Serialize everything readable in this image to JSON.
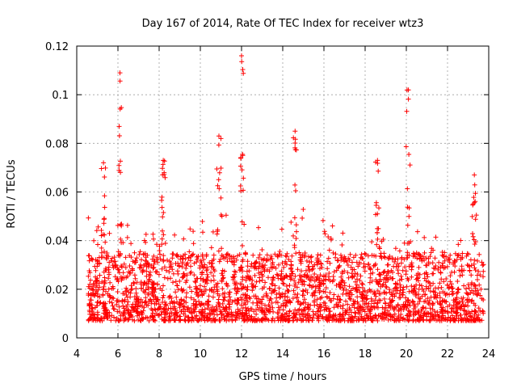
{
  "chart_data": {
    "type": "scatter",
    "title": "Day 167 of 2014, Rate Of TEC Index for receiver wtz3",
    "xlabel": "GPS time / hours",
    "ylabel": "ROTI / TECUs",
    "xlim": [
      4,
      24
    ],
    "ylim": [
      0,
      0.12
    ],
    "xticks": [
      4,
      6,
      8,
      10,
      12,
      14,
      16,
      18,
      20,
      22,
      24
    ],
    "xtick_labels": [
      "4",
      "6",
      "8",
      "10",
      "12",
      "14",
      "16",
      "18",
      "20",
      "22",
      "24"
    ],
    "yticks": [
      0,
      0.02,
      0.04,
      0.06,
      0.08,
      0.1,
      0.12
    ],
    "ytick_labels": [
      "0",
      "0.02",
      "0.04",
      "0.06",
      "0.08",
      "0.1",
      "0.12"
    ],
    "grid": true,
    "marker": "+",
    "color": "#ff0000",
    "x_range_of_data": [
      4.55,
      23.75
    ],
    "baseline_band": [
      0.007,
      0.035
    ],
    "notable_peaks": [
      {
        "x": 5.3,
        "y": 0.072
      },
      {
        "x": 6.1,
        "y": 0.109
      },
      {
        "x": 8.2,
        "y": 0.073
      },
      {
        "x": 10.9,
        "y": 0.083
      },
      {
        "x": 12.0,
        "y": 0.116
      },
      {
        "x": 14.6,
        "y": 0.085
      },
      {
        "x": 18.6,
        "y": 0.073
      },
      {
        "x": 20.1,
        "y": 0.102
      },
      {
        "x": 23.3,
        "y": 0.067
      }
    ]
  }
}
